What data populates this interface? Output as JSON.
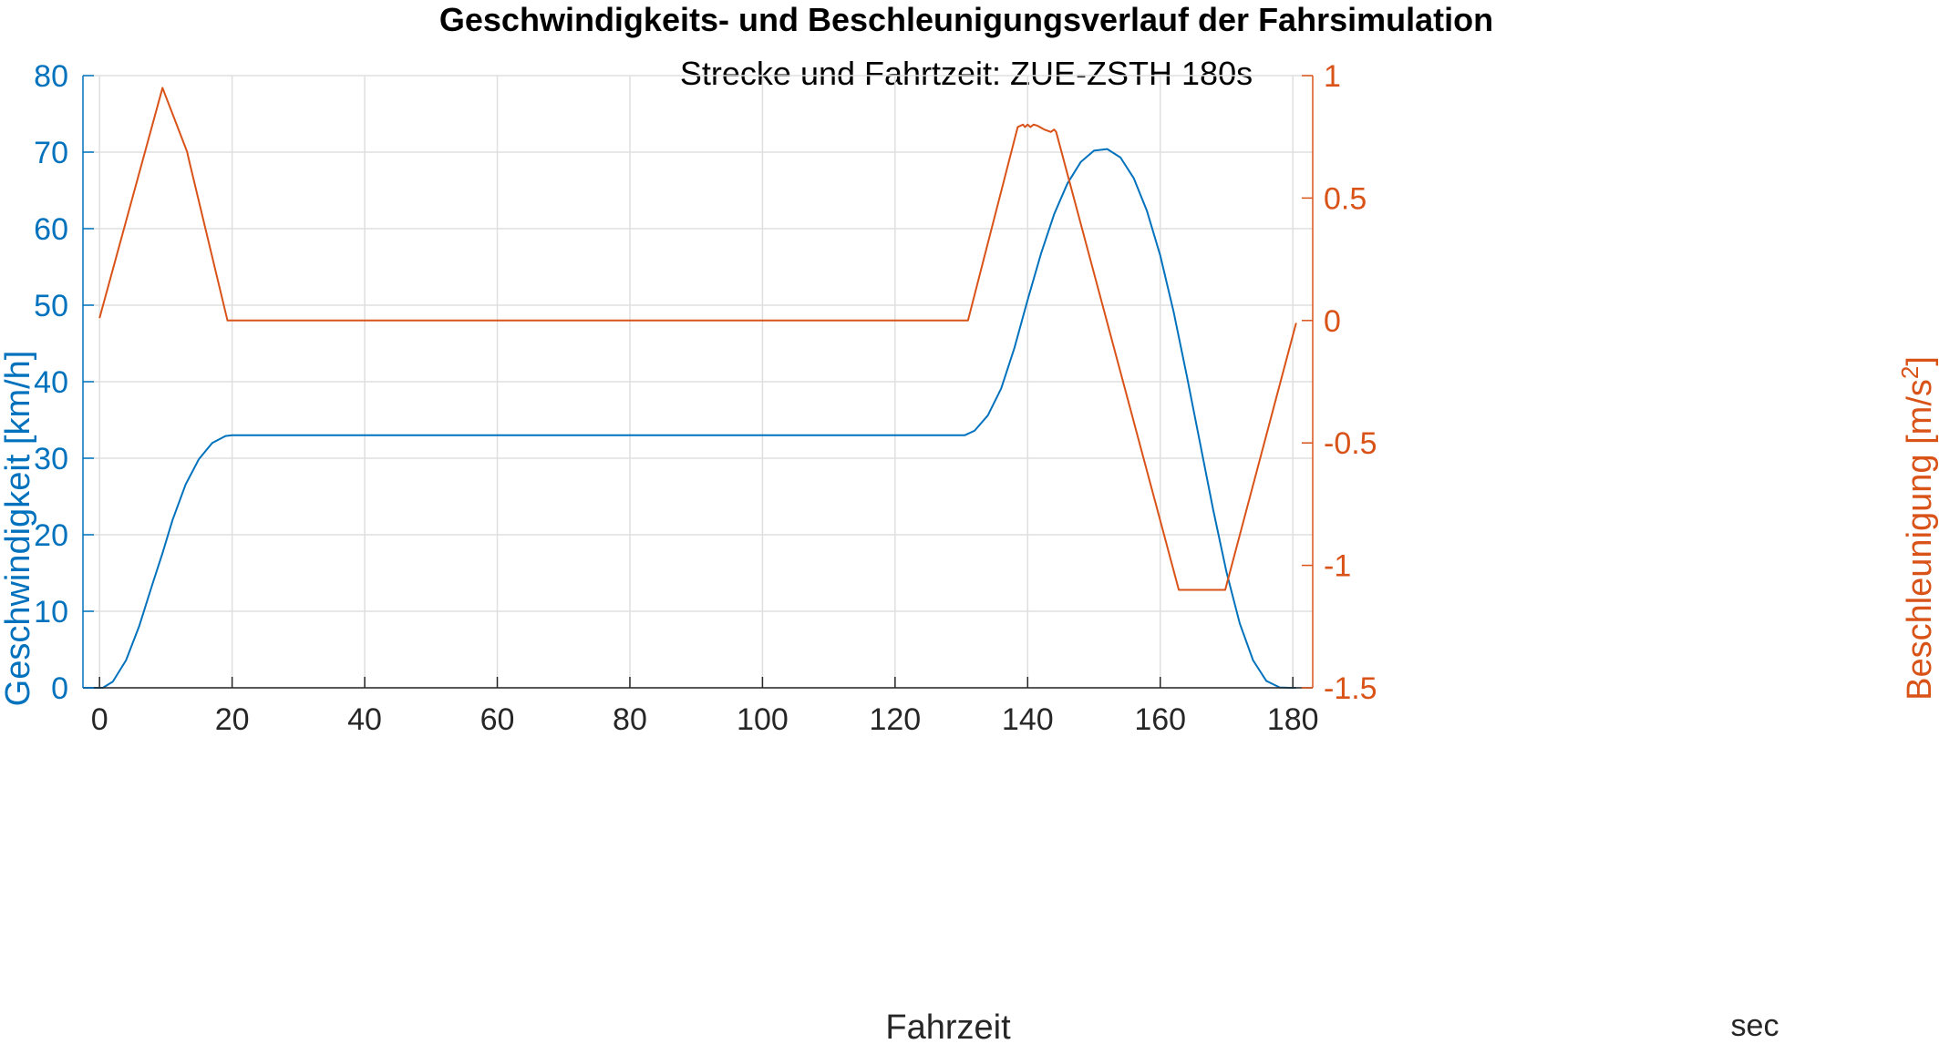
{
  "chart_data": {
    "type": "line",
    "title": "Geschwindigkeits- und Beschleunigungsverlauf der Fahrsimulation",
    "subtitle": "Strecke und Fahrtzeit: ZUE-ZSTH 180s",
    "xlabel": "Fahrzeit",
    "xunit": "sec",
    "ylabel_left": "Geschwindigkeit [km/h]",
    "ylabel_right_main": "Beschleunigung [m/s",
    "ylabel_right_sup": "2",
    "ylabel_right_tail": "]",
    "xlim": [
      -2.5,
      183
    ],
    "ylim_left": [
      0,
      80
    ],
    "ylim_right": [
      -1.5,
      1
    ],
    "grid": true,
    "xticks": [
      0,
      20,
      40,
      60,
      80,
      100,
      120,
      140,
      160,
      180
    ],
    "xtick_labels": [
      "0",
      "20",
      "40",
      "60",
      "80",
      "100",
      "120",
      "140",
      "160",
      "180"
    ],
    "yticks_left": [
      0,
      10,
      20,
      30,
      40,
      50,
      60,
      70,
      80
    ],
    "ytick_labels_left": [
      "0",
      "10",
      "20",
      "30",
      "40",
      "50",
      "60",
      "70",
      "80"
    ],
    "yticks_right": [
      -1.5,
      -1,
      -0.5,
      0,
      0.5,
      1
    ],
    "ytick_labels_right": [
      "-1.5",
      "-1",
      "-0.5",
      "0",
      "0.5",
      "1"
    ],
    "colors": {
      "speed": "#0072BD",
      "accel": "#D95319",
      "grid": "#DFDFDF",
      "axis_x": "#262626"
    },
    "series": [
      {
        "name": "Geschwindigkeit",
        "axis": "left",
        "x": [
          -2.5,
          0.5,
          2,
          4,
          6,
          8,
          9.5,
          11,
          13,
          15,
          17,
          19,
          20,
          130.5,
          132,
          134,
          136,
          138,
          140,
          142,
          144,
          146,
          148,
          150,
          152,
          154,
          156,
          158,
          160,
          162,
          164,
          166,
          168,
          170,
          172,
          174,
          176,
          178,
          179.5,
          180.5
        ],
        "values": [
          0,
          0,
          0.8,
          3.6,
          8.1,
          13.6,
          17.6,
          21.9,
          26.6,
          29.9,
          32,
          32.9,
          33,
          33,
          33.6,
          35.6,
          39.1,
          44.4,
          50.7,
          56.7,
          61.9,
          65.9,
          68.7,
          70.2,
          70.4,
          69.3,
          66.6,
          62.3,
          56.5,
          49.2,
          40.8,
          32,
          23.2,
          15.1,
          8.4,
          3.6,
          0.9,
          0.05,
          0,
          0
        ]
      },
      {
        "name": "Beschleunigung",
        "axis": "right",
        "x": [
          0,
          9.5,
          13.2,
          13.45,
          19.3,
          131,
          138.5,
          139.3,
          139.6,
          140.0,
          140.4,
          140.9,
          141.5,
          142.5,
          143.5,
          144.0,
          144.3,
          162.8,
          169.8,
          180.5
        ],
        "values": [
          0.01,
          0.95,
          0.69,
          0.66,
          0,
          0,
          0.79,
          0.8,
          0.79,
          0.8,
          0.79,
          0.8,
          0.795,
          0.78,
          0.77,
          0.78,
          0.77,
          -1.1,
          -1.1,
          -0.01
        ]
      }
    ]
  }
}
